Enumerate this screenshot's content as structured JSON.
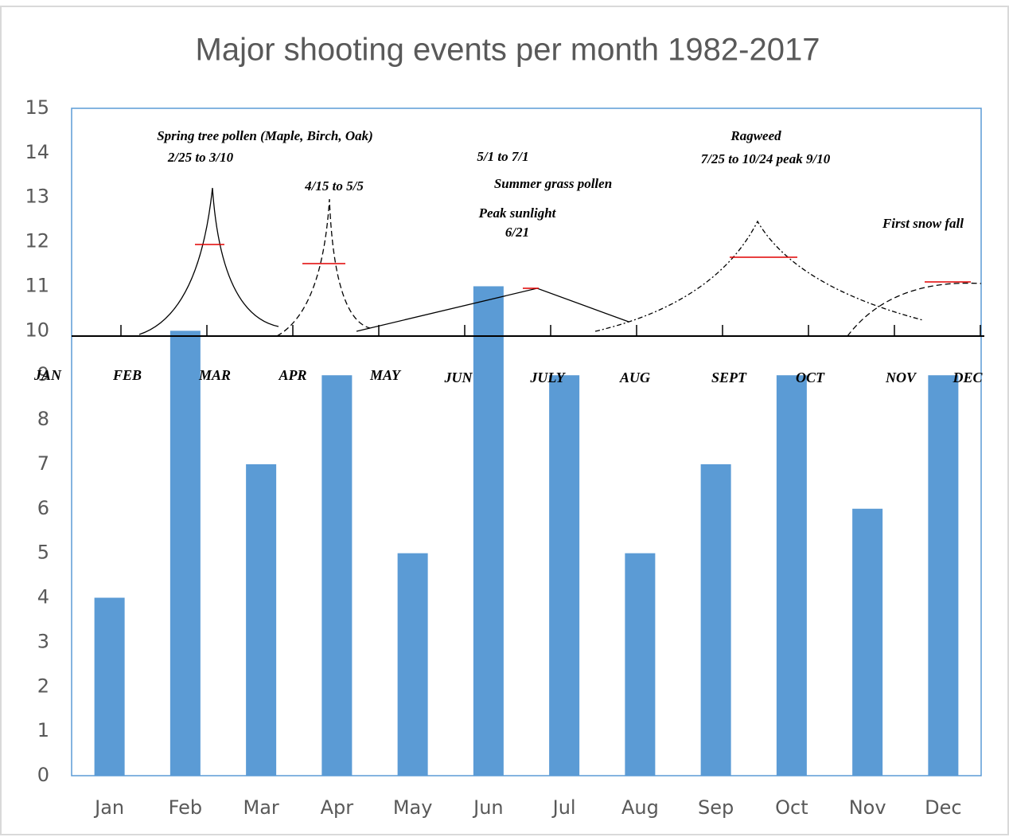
{
  "chart_data": {
    "type": "bar",
    "title": "Major shooting events per month 1982-2017",
    "categories": [
      "Jan",
      "Feb",
      "Mar",
      "Apr",
      "May",
      "Jun",
      "Jul",
      "Aug",
      "Sep",
      "Oct",
      "Nov",
      "Dec"
    ],
    "values": [
      4,
      10,
      7,
      9,
      5,
      11,
      9,
      5,
      7,
      9,
      6,
      9
    ],
    "color": "#5b9bd5",
    "ylim": [
      0,
      15
    ],
    "yticks": [
      0,
      1,
      2,
      3,
      4,
      5,
      6,
      7,
      8,
      9,
      10,
      11,
      12,
      13,
      14,
      15
    ],
    "grid": false,
    "annotations": [
      "Spring tree pollen (Maple, Birch, Oak)",
      "2/25 to 3/10",
      "4/15 to 5/5",
      "5/1 to 7/1",
      "Summer grass pollen",
      "Peak sunlight",
      "6/21",
      "Ragweed",
      "7/25 to 10/24 peak 9/10",
      "First snow fall"
    ],
    "timeline_months": [
      "JAN",
      "FEB",
      "MAR",
      "APR",
      "MAY",
      "JUN",
      "JULY",
      "AUG",
      "SEPT",
      "OCT",
      "NOV",
      "DEC"
    ]
  }
}
